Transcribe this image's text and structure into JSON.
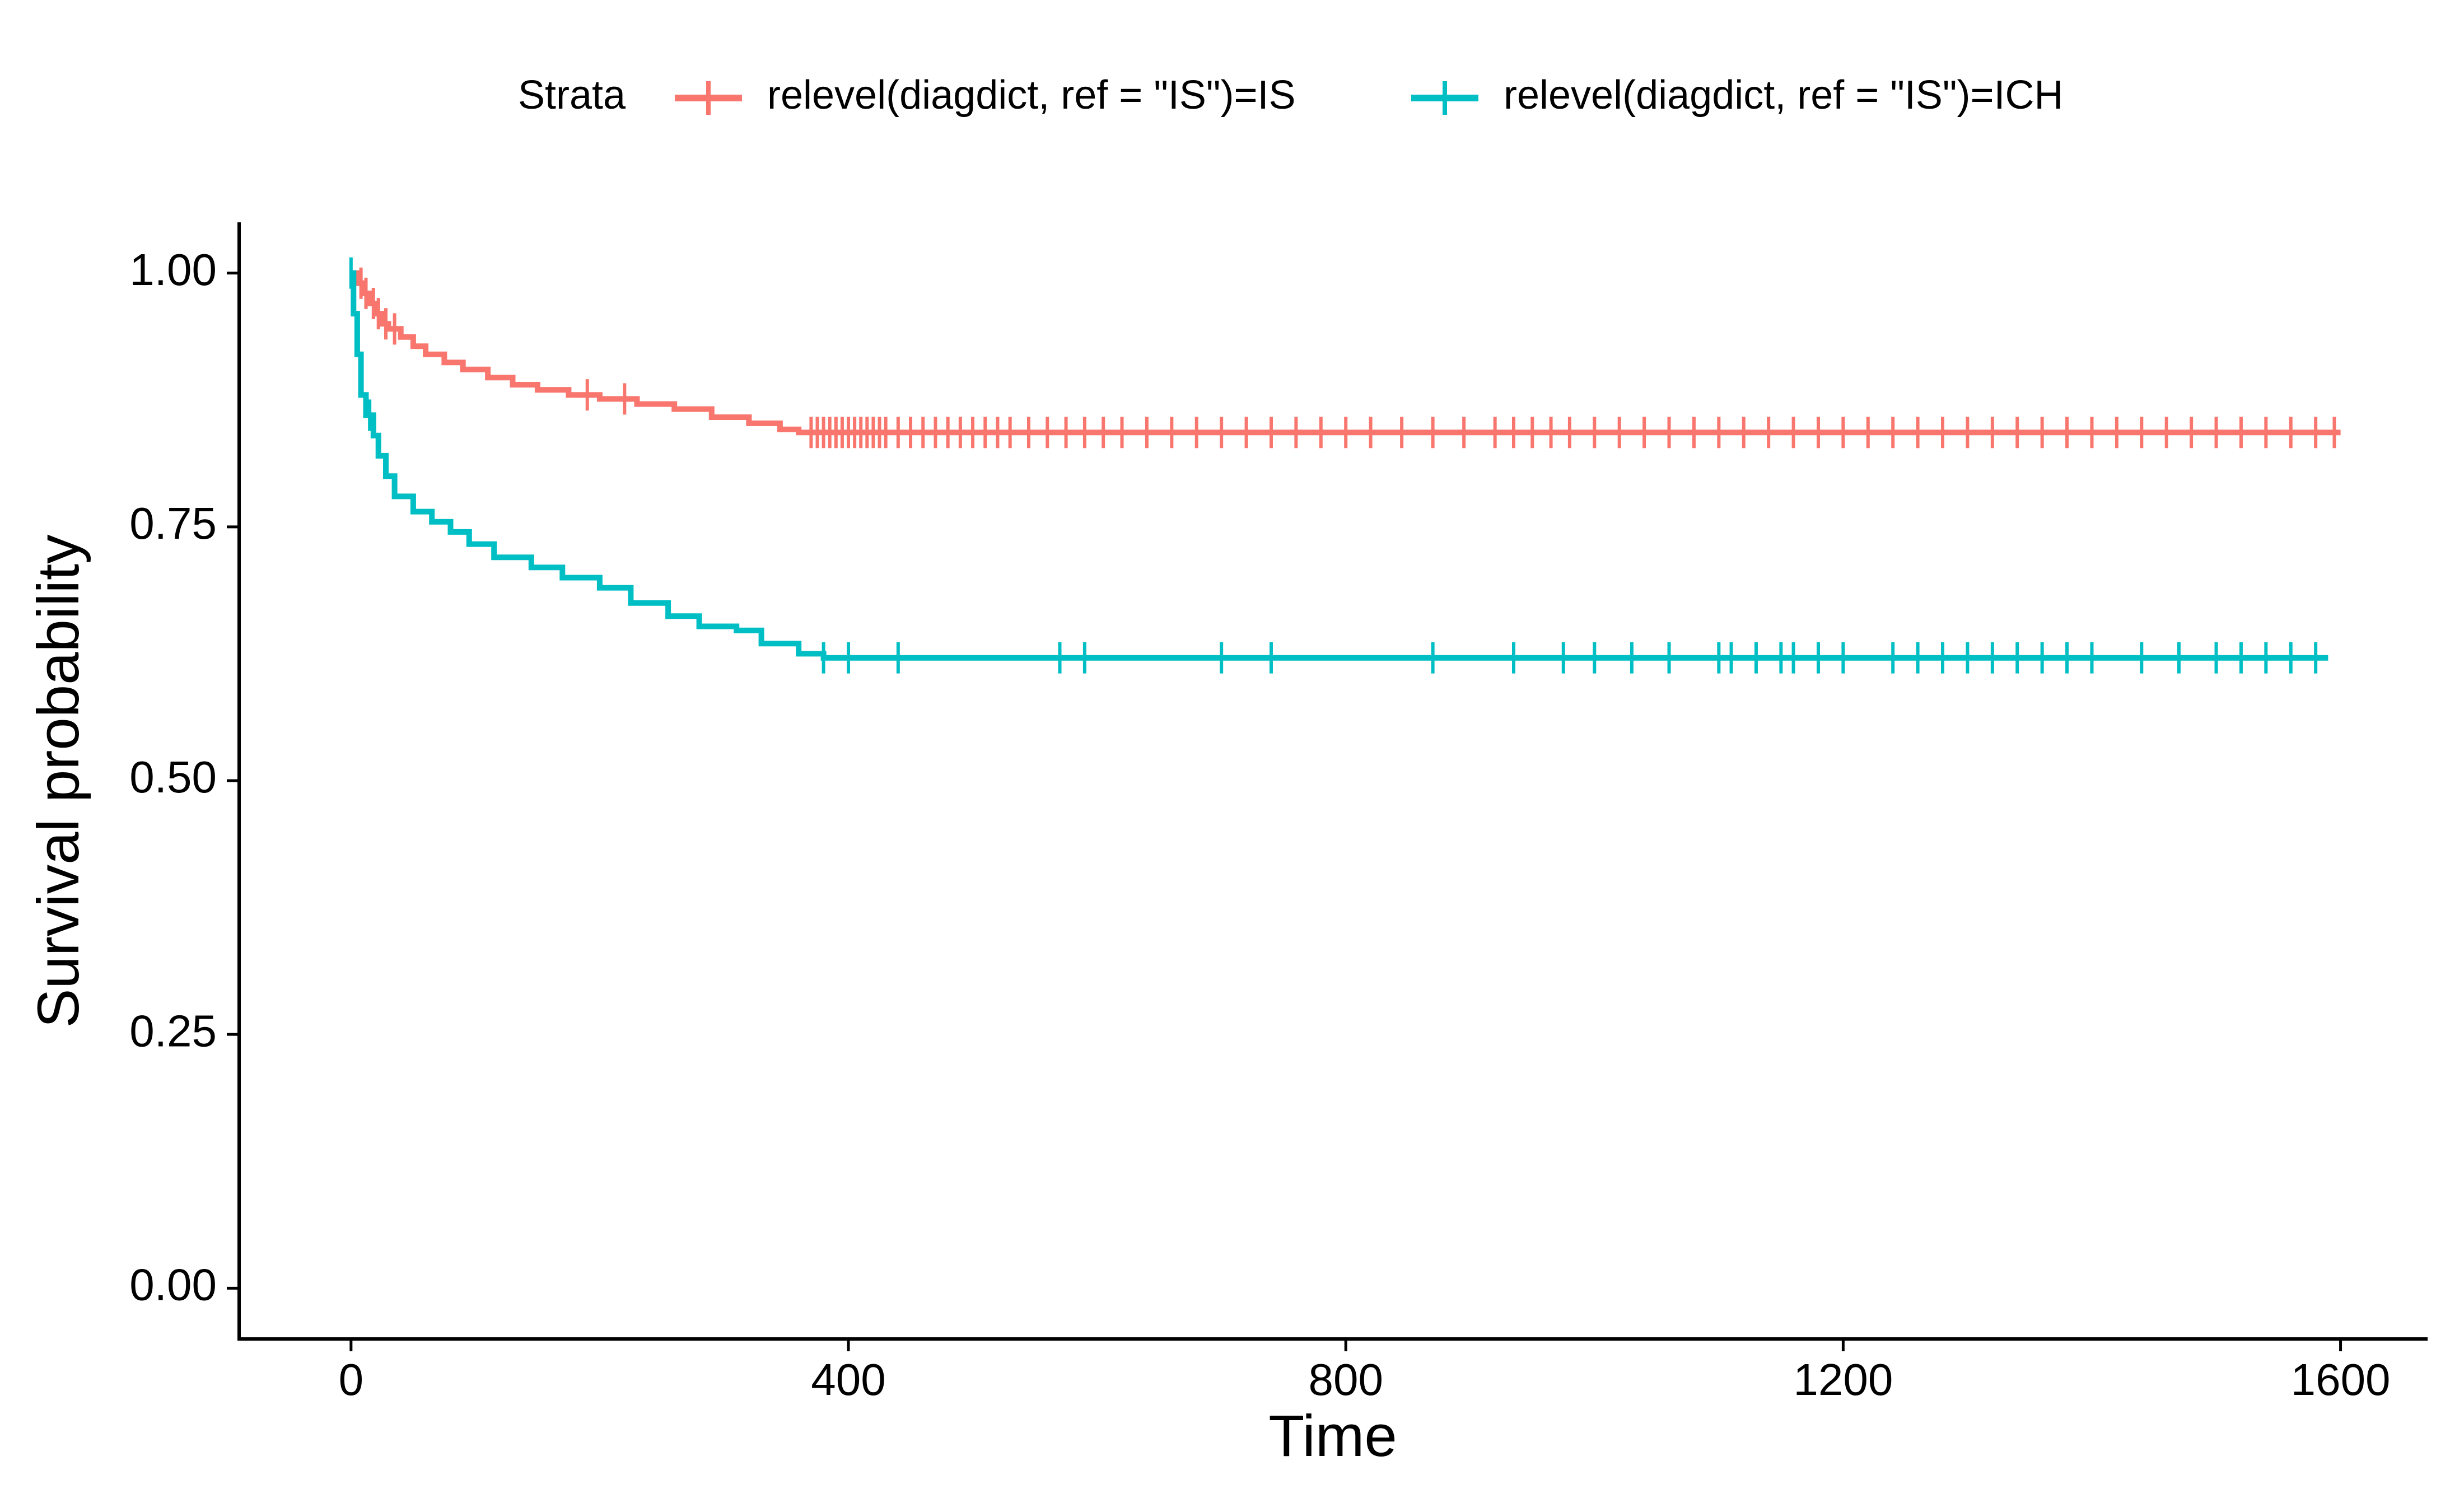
{
  "chart_data": {
    "type": "line",
    "subtype": "kaplan-meier step",
    "xlabel": "Time",
    "ylabel": "Survival probability",
    "xlim": [
      -90,
      1670
    ],
    "ylim": [
      -0.05,
      1.05
    ],
    "xticks": [
      0,
      400,
      800,
      1200,
      1600
    ],
    "xtick_labels": [
      "0",
      "400",
      "800",
      "1200",
      "1600"
    ],
    "yticks": [
      0,
      0.25,
      0.5,
      0.75,
      1
    ],
    "ytick_labels": [
      "0.00",
      "0.25",
      "0.50",
      "0.75",
      "1.00"
    ],
    "grid": false,
    "legend": {
      "title": "Strata",
      "placement": "top",
      "entries": [
        "relevel(diagdict, ref = \"IS\")=IS",
        "relevel(diagdict, ref = \"IS\")=ICH"
      ]
    },
    "series": [
      {
        "name": "relevel(diagdict, ref = \"IS\")=IS",
        "color": "#F8766D",
        "steps": [
          [
            0,
            1.0
          ],
          [
            5,
            0.99
          ],
          [
            10,
            0.98
          ],
          [
            15,
            0.97
          ],
          [
            20,
            0.96
          ],
          [
            25,
            0.95
          ],
          [
            30,
            0.945
          ],
          [
            40,
            0.937
          ],
          [
            50,
            0.928
          ],
          [
            60,
            0.92
          ],
          [
            75,
            0.912
          ],
          [
            90,
            0.905
          ],
          [
            110,
            0.897
          ],
          [
            130,
            0.89
          ],
          [
            150,
            0.885
          ],
          [
            175,
            0.88
          ],
          [
            200,
            0.876
          ],
          [
            230,
            0.871
          ],
          [
            260,
            0.866
          ],
          [
            290,
            0.858
          ],
          [
            320,
            0.852
          ],
          [
            345,
            0.846
          ],
          [
            360,
            0.843
          ],
          [
            1600,
            0.843
          ]
        ],
        "censor_times": [
          8,
          12,
          18,
          22,
          28,
          35,
          190,
          220,
          370,
          375,
          380,
          385,
          390,
          395,
          400,
          405,
          410,
          415,
          420,
          425,
          430,
          440,
          450,
          460,
          470,
          480,
          490,
          500,
          510,
          520,
          530,
          545,
          560,
          575,
          590,
          605,
          620,
          640,
          660,
          680,
          700,
          720,
          740,
          760,
          780,
          800,
          820,
          845,
          870,
          895,
          920,
          935,
          950,
          965,
          980,
          1000,
          1020,
          1040,
          1060,
          1080,
          1100,
          1120,
          1140,
          1160,
          1180,
          1200,
          1220,
          1240,
          1260,
          1280,
          1300,
          1320,
          1340,
          1360,
          1380,
          1400,
          1420,
          1440,
          1460,
          1480,
          1500,
          1520,
          1540,
          1560,
          1580,
          1595
        ]
      },
      {
        "name": "relevel(diagdict, ref = \"IS\")=ICH",
        "color": "#00BFC4",
        "steps": [
          [
            0,
            1.0
          ],
          [
            2,
            0.96
          ],
          [
            5,
            0.92
          ],
          [
            8,
            0.88
          ],
          [
            12,
            0.86
          ],
          [
            18,
            0.84
          ],
          [
            22,
            0.82
          ],
          [
            28,
            0.8
          ],
          [
            35,
            0.78
          ],
          [
            50,
            0.765
          ],
          [
            65,
            0.755
          ],
          [
            80,
            0.745
          ],
          [
            95,
            0.733
          ],
          [
            115,
            0.72
          ],
          [
            145,
            0.71
          ],
          [
            170,
            0.7
          ],
          [
            200,
            0.69
          ],
          [
            225,
            0.675
          ],
          [
            255,
            0.662
          ],
          [
            280,
            0.652
          ],
          [
            310,
            0.648
          ],
          [
            330,
            0.635
          ],
          [
            360,
            0.625
          ],
          [
            380,
            0.621
          ],
          [
            1590,
            0.621
          ]
        ],
        "censor_times": [
          0,
          15,
          380,
          400,
          440,
          570,
          590,
          700,
          740,
          870,
          935,
          975,
          1000,
          1030,
          1060,
          1100,
          1110,
          1130,
          1150,
          1160,
          1180,
          1200,
          1240,
          1260,
          1280,
          1300,
          1320,
          1340,
          1360,
          1380,
          1400,
          1440,
          1470,
          1500,
          1520,
          1540,
          1560,
          1580
        ]
      }
    ]
  }
}
